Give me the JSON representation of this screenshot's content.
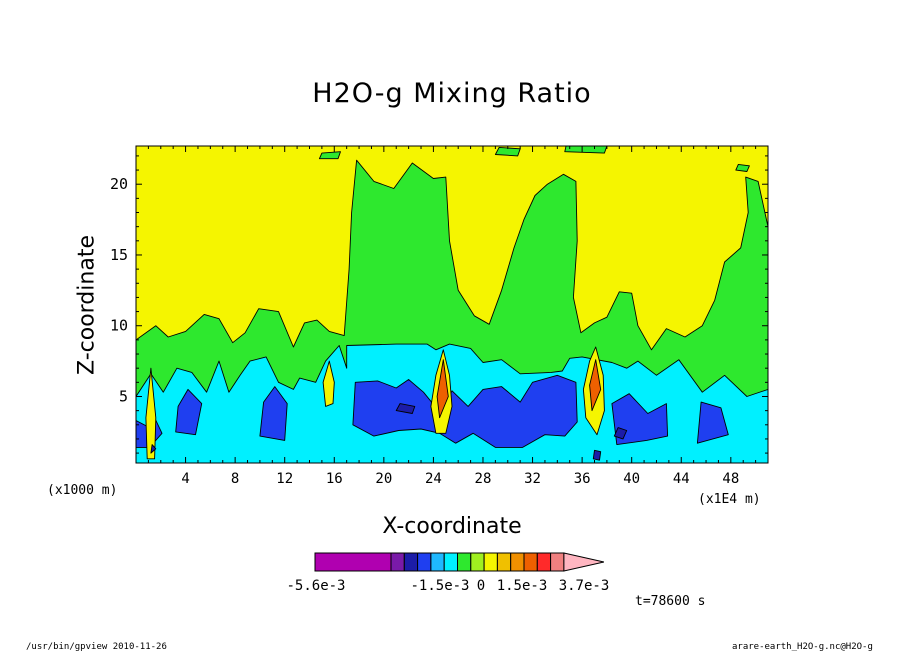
{
  "chart_data": {
    "type": "heatmap",
    "title": "H2O-g Mixing Ratio",
    "xlabel": "X-coordinate",
    "ylabel": "Z-coordinate",
    "x_unit": "(x1E4 m)",
    "y_unit": "(x1000 m)",
    "x_ticks": [
      4,
      8,
      12,
      16,
      20,
      24,
      28,
      32,
      36,
      40,
      44,
      48
    ],
    "y_ticks": [
      5,
      10,
      15,
      20
    ],
    "xlim": [
      0,
      51
    ],
    "ylim": [
      0.3,
      22.7
    ],
    "colorbar": {
      "labels": [
        "-5.6e-3",
        "-1.5e-3",
        "0",
        "1.5e-3",
        "3.7e-3"
      ],
      "colors": [
        "#b000b0",
        "#7a1aa8",
        "#1c1ca8",
        "#1f3ff0",
        "#1fb8ff",
        "#00f0ff",
        "#2ee82e",
        "#a0f020",
        "#f5f500",
        "#f0c000",
        "#f09000",
        "#ee6000",
        "#ff2a2a",
        "#f08080",
        "#ffb6c1"
      ]
    },
    "regions": [
      {
        "level": "green",
        "color": "#2ee82e",
        "points": [
          [
            0,
            0.3
          ],
          [
            0,
            9
          ],
          [
            1.6,
            10
          ],
          [
            2.6,
            9.2
          ],
          [
            4,
            9.6
          ],
          [
            5.5,
            10.8
          ],
          [
            6.7,
            10.5
          ],
          [
            7.8,
            8.8
          ],
          [
            8.8,
            9.5
          ],
          [
            9.9,
            11.2
          ],
          [
            11.5,
            11
          ],
          [
            12.7,
            8.5
          ],
          [
            13.6,
            10.2
          ],
          [
            14.6,
            10.4
          ],
          [
            15.6,
            9.6
          ],
          [
            16.8,
            9.3
          ],
          [
            17.2,
            14
          ],
          [
            17.4,
            18
          ],
          [
            17.8,
            21.7
          ],
          [
            19.2,
            20.2
          ],
          [
            20.8,
            19.7
          ],
          [
            22.3,
            21.5
          ],
          [
            24,
            20.4
          ],
          [
            25,
            20.5
          ],
          [
            25.3,
            16
          ],
          [
            26,
            12.5
          ],
          [
            27.3,
            10.7
          ],
          [
            28.5,
            10.1
          ],
          [
            29.5,
            12.5
          ],
          [
            30.5,
            15.5
          ],
          [
            31.3,
            17.5
          ],
          [
            32.2,
            19.2
          ],
          [
            33.2,
            20
          ],
          [
            34.5,
            20.7
          ],
          [
            35.5,
            20.2
          ],
          [
            35.6,
            16
          ],
          [
            35.3,
            12
          ],
          [
            35.9,
            9.5
          ],
          [
            37,
            10.2
          ],
          [
            38,
            10.6
          ],
          [
            39,
            12.4
          ],
          [
            40,
            12.3
          ],
          [
            40.5,
            10
          ],
          [
            41.6,
            8.3
          ],
          [
            42.8,
            9.8
          ],
          [
            44.3,
            9.2
          ],
          [
            45.7,
            10
          ],
          [
            46.7,
            11.8
          ],
          [
            47.5,
            14.5
          ],
          [
            48.8,
            15.5
          ],
          [
            49.4,
            18
          ],
          [
            49.2,
            20.5
          ],
          [
            50.2,
            20.2
          ],
          [
            51,
            17
          ],
          [
            51,
            0.3
          ]
        ]
      },
      {
        "level": "cyan",
        "color": "#00f0ff",
        "points": [
          [
            0,
            0.3
          ],
          [
            0,
            5
          ],
          [
            1.2,
            6.6
          ],
          [
            2.2,
            5.3
          ],
          [
            3.3,
            7
          ],
          [
            4.5,
            6.7
          ],
          [
            5.7,
            5.3
          ],
          [
            6.7,
            7.5
          ],
          [
            7.5,
            5.3
          ],
          [
            8.4,
            6.5
          ],
          [
            9.2,
            7.5
          ],
          [
            10.5,
            7.8
          ],
          [
            11.5,
            6
          ],
          [
            12.7,
            5.5
          ],
          [
            13.2,
            6.3
          ],
          [
            14.5,
            6
          ],
          [
            15.3,
            7.5
          ],
          [
            16.4,
            8.6
          ],
          [
            17,
            7
          ],
          [
            17,
            8.6
          ],
          [
            21,
            8.7
          ],
          [
            23.5,
            8.7
          ],
          [
            24.2,
            8.3
          ],
          [
            25.3,
            8.7
          ],
          [
            27,
            8.4
          ],
          [
            28,
            7.4
          ],
          [
            29.5,
            7.6
          ],
          [
            31,
            6.6
          ],
          [
            33.5,
            6.7
          ],
          [
            34.4,
            6.8
          ],
          [
            35,
            7.7
          ],
          [
            36,
            7.8
          ],
          [
            38.4,
            7.4
          ],
          [
            39.6,
            7
          ],
          [
            40.5,
            7.5
          ],
          [
            42,
            6.5
          ],
          [
            43.8,
            7.6
          ],
          [
            45.7,
            5.3
          ],
          [
            47.5,
            6.5
          ],
          [
            49.3,
            5
          ],
          [
            51,
            5.5
          ],
          [
            51,
            0.3
          ]
        ]
      },
      {
        "level": "blue",
        "color": "#1f3ff0",
        "points": [
          [
            17.5,
            3
          ],
          [
            17.7,
            6
          ],
          [
            19.5,
            6.1
          ],
          [
            21,
            5.6
          ],
          [
            22,
            6.2
          ],
          [
            23.2,
            5.3
          ],
          [
            24.6,
            3.8
          ],
          [
            25.5,
            5.4
          ],
          [
            26.8,
            4.3
          ],
          [
            28,
            5.5
          ],
          [
            29.5,
            5.7
          ],
          [
            31,
            4.6
          ],
          [
            32,
            6
          ],
          [
            34,
            6.5
          ],
          [
            35.5,
            6
          ],
          [
            35.6,
            3.2
          ],
          [
            34.6,
            2.2
          ],
          [
            33,
            2.3
          ],
          [
            31.2,
            1.4
          ],
          [
            29,
            1.4
          ],
          [
            27.2,
            2.4
          ],
          [
            25.8,
            1.7
          ],
          [
            24.5,
            2.4
          ],
          [
            23,
            2.7
          ],
          [
            21.2,
            2.6
          ],
          [
            19.2,
            2.2
          ]
        ]
      },
      {
        "level": "blue",
        "color": "#1f3ff0",
        "points": [
          [
            10,
            2.2
          ],
          [
            10.3,
            4.6
          ],
          [
            11.2,
            5.7
          ],
          [
            12.2,
            4.5
          ],
          [
            12,
            1.9
          ]
        ]
      },
      {
        "level": "blue",
        "color": "#1f3ff0",
        "points": [
          [
            3.2,
            2.5
          ],
          [
            3.4,
            4.3
          ],
          [
            4.2,
            5.5
          ],
          [
            5.3,
            4.5
          ],
          [
            4.8,
            2.3
          ]
        ]
      },
      {
        "level": "blue",
        "color": "#1f3ff0",
        "points": [
          [
            38.8,
            1.6
          ],
          [
            38.4,
            4.5
          ],
          [
            39.8,
            5.2
          ],
          [
            41.3,
            3.8
          ],
          [
            42.8,
            4.5
          ],
          [
            42.9,
            2.2
          ],
          [
            41.2,
            1.9
          ]
        ]
      },
      {
        "level": "blue",
        "color": "#1f3ff0",
        "points": [
          [
            45.3,
            1.7
          ],
          [
            45.6,
            4.6
          ],
          [
            47.2,
            4.2
          ],
          [
            47.8,
            2.3
          ]
        ]
      },
      {
        "level": "blue",
        "color": "#1f3ff0",
        "points": [
          [
            0,
            1.4
          ],
          [
            0,
            3.3
          ],
          [
            1.1,
            2.8
          ],
          [
            0.9,
            1.4
          ]
        ]
      },
      {
        "level": "blue",
        "color": "#1f3ff0",
        "points": [
          [
            1.3,
            1.6
          ],
          [
            1.5,
            3.5
          ],
          [
            2.1,
            2.4
          ]
        ]
      },
      {
        "level": "yellow",
        "color": "#f5f500",
        "points": [
          [
            24.2,
            2.4
          ],
          [
            23.8,
            4.3
          ],
          [
            24.2,
            6.5
          ],
          [
            24.8,
            8.3
          ],
          [
            25.3,
            6.5
          ],
          [
            25.5,
            4.3
          ],
          [
            25,
            2.4
          ]
        ]
      },
      {
        "level": "orange",
        "color": "#ee6000",
        "points": [
          [
            24.5,
            3.5
          ],
          [
            24.3,
            5
          ],
          [
            24.8,
            7.6
          ],
          [
            25.2,
            5
          ]
        ]
      },
      {
        "level": "yellow",
        "color": "#f5f500",
        "points": [
          [
            36.3,
            3.5
          ],
          [
            36.1,
            5.5
          ],
          [
            36.6,
            7.5
          ],
          [
            37.1,
            8.5
          ],
          [
            37.7,
            6.5
          ],
          [
            37.8,
            4
          ],
          [
            37.2,
            2.3
          ]
        ]
      },
      {
        "level": "orange",
        "color": "#ee6000",
        "points": [
          [
            36.8,
            4
          ],
          [
            36.6,
            5.8
          ],
          [
            37.1,
            7.6
          ],
          [
            37.5,
            5.5
          ]
        ]
      },
      {
        "level": "yellow",
        "color": "#f5f500",
        "points": [
          [
            15.3,
            4.3
          ],
          [
            15.1,
            6
          ],
          [
            15.6,
            7.5
          ],
          [
            16,
            6
          ],
          [
            15.9,
            4.5
          ]
        ]
      },
      {
        "level": "yellow",
        "color": "#f5f500",
        "points": [
          [
            0.9,
            0.6
          ],
          [
            0.8,
            3.5
          ],
          [
            1.2,
            7
          ],
          [
            1.6,
            3.5
          ],
          [
            1.5,
            0.6
          ]
        ]
      },
      {
        "level": "darkblue",
        "color": "#1c1ca8",
        "points": [
          [
            21,
            4
          ],
          [
            21.3,
            4.5
          ],
          [
            22.5,
            4.3
          ],
          [
            22.3,
            3.8
          ]
        ]
      },
      {
        "level": "darkblue",
        "color": "#1c1ca8",
        "points": [
          [
            38.6,
            2.2
          ],
          [
            38.9,
            2.8
          ],
          [
            39.6,
            2.6
          ],
          [
            39.3,
            2
          ]
        ]
      },
      {
        "level": "darkblue",
        "color": "#1c1ca8",
        "points": [
          [
            36.9,
            0.6
          ],
          [
            37,
            1.2
          ],
          [
            37.5,
            1.1
          ],
          [
            37.4,
            0.5
          ]
        ]
      },
      {
        "level": "darkblue",
        "color": "#1c1ca8",
        "points": [
          [
            1.2,
            1
          ],
          [
            1.3,
            1.6
          ],
          [
            1.6,
            1.3
          ]
        ]
      },
      {
        "level": "green",
        "color": "#2ee82e",
        "points": [
          [
            29,
            22.1
          ],
          [
            29.3,
            22.6
          ],
          [
            31,
            22.5
          ],
          [
            30.8,
            22
          ]
        ]
      },
      {
        "level": "green",
        "color": "#2ee82e",
        "points": [
          [
            34.6,
            22.3
          ],
          [
            34.7,
            22.7
          ],
          [
            38,
            22.7
          ],
          [
            37.8,
            22.2
          ]
        ]
      },
      {
        "level": "green",
        "color": "#2ee82e",
        "points": [
          [
            14.8,
            21.8
          ],
          [
            15,
            22.2
          ],
          [
            16.5,
            22.3
          ],
          [
            16.3,
            21.8
          ]
        ]
      },
      {
        "level": "green",
        "color": "#2ee82e",
        "points": [
          [
            48.4,
            21
          ],
          [
            48.6,
            21.4
          ],
          [
            49.5,
            21.3
          ],
          [
            49.3,
            20.9
          ]
        ]
      }
    ],
    "time_label": "t=78600 s"
  },
  "footer": {
    "left": "/usr/bin/gpview  2010-11-26",
    "right": "arare-earth_H2O-g.nc@H2O-g"
  }
}
